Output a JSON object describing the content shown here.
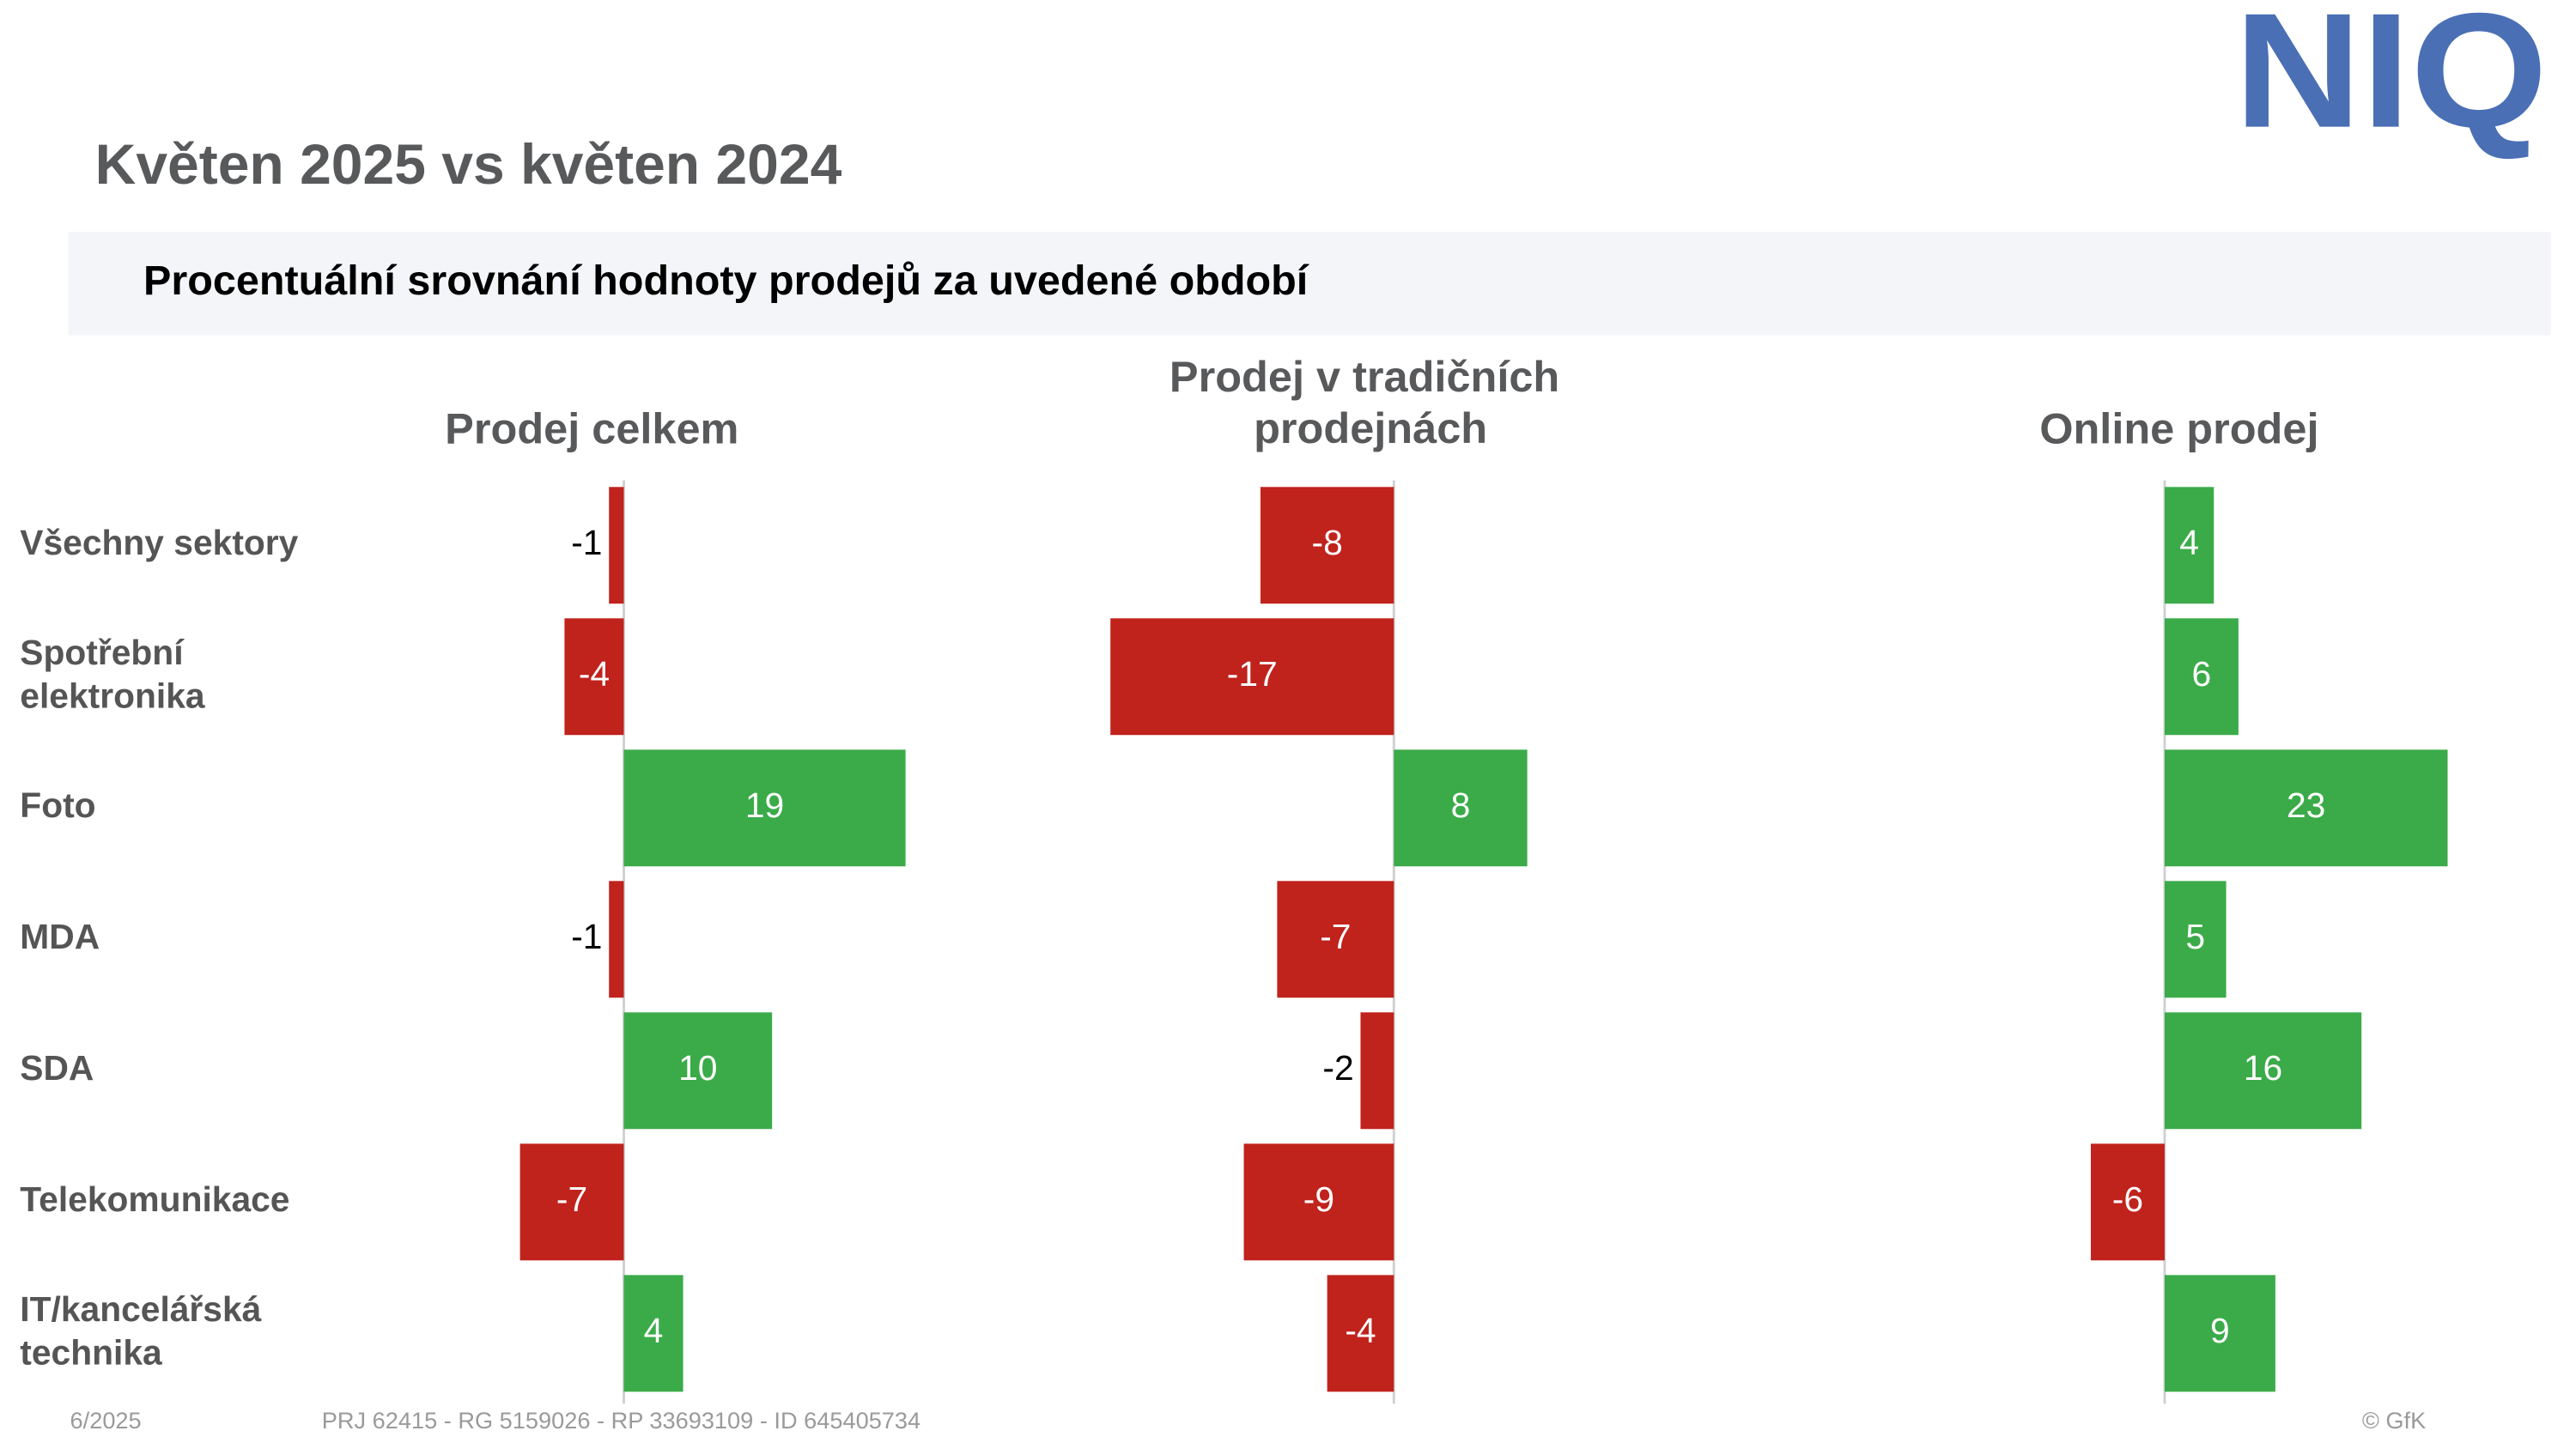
{
  "header": {
    "title": "Květen 2025 vs květen 2024",
    "subtitle": "Procentuální srovnání hodnoty prodejů za uvedené období",
    "logo": "NIQ"
  },
  "footer": {
    "date": "6/2025",
    "id": "PRJ 62415 - RG 5159026 - RP 33693109 - ID 645405734",
    "copyright": "© GfK"
  },
  "chart_data": [
    {
      "type": "hbar",
      "title": "Prodej celkem",
      "categories": [
        "Všechny sektory",
        "Spotřební elektronika",
        "Foto",
        "MDA",
        "SDA",
        "Telekomunikace",
        "IT/kancelářská technika"
      ],
      "values": [
        -1,
        -4,
        19,
        -1,
        10,
        -7,
        4
      ],
      "xlim": [
        -8,
        20
      ],
      "positive_color": "#3aab48",
      "negative_color": "#c0221c"
    },
    {
      "type": "hbar",
      "title": "Prodej v tradičních prodejnách",
      "values": [
        -8,
        -17,
        8,
        -7,
        -2,
        -9,
        -4
      ],
      "xlim": [
        -17,
        9
      ],
      "positive_color": "#3aab48",
      "negative_color": "#c0221c"
    },
    {
      "type": "hbar",
      "title": "Online prodej",
      "values": [
        4,
        6,
        23,
        5,
        16,
        -6,
        9
      ],
      "xlim": [
        -6,
        23
      ],
      "positive_color": "#3aab48",
      "negative_color": "#c0221c"
    }
  ]
}
